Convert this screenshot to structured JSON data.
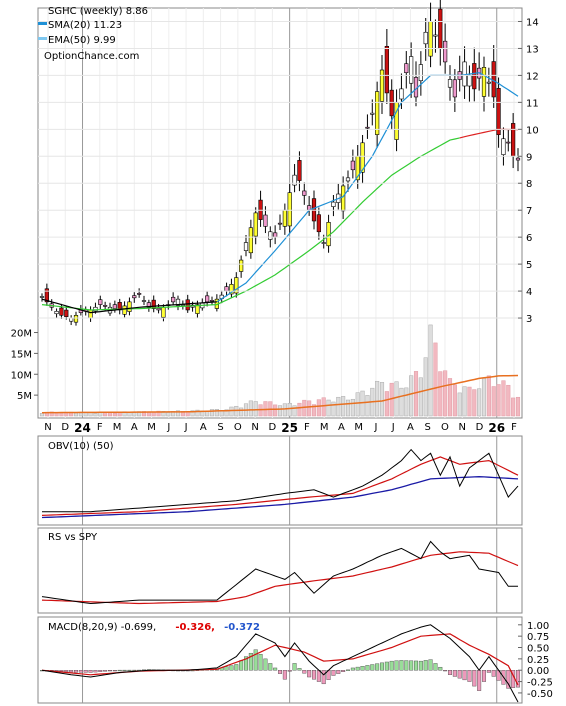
{
  "chart_data": {
    "type": "candlestick",
    "title": "SGHC (weekly) 8.86",
    "legend": [
      {
        "label": "SMA(20) 11.23",
        "color": "#1e90d6"
      },
      {
        "label": "EMA(50) 9.99",
        "color": "#7fc8f0"
      }
    ],
    "watermark": "OptionChance.com",
    "price_axis": {
      "ticks": [
        "14",
        "13",
        "12",
        "11",
        "10",
        "9",
        "8",
        "7",
        "6",
        "5",
        "4",
        "3"
      ],
      "range": [
        2.0,
        14.5
      ]
    },
    "volume_axis": {
      "ticks": [
        "20M",
        "15M",
        "10M",
        "5M"
      ],
      "range": [
        0,
        23
      ]
    },
    "x_labels": [
      "N",
      "D",
      "24",
      "F",
      "M",
      "A",
      "M",
      "J",
      "J",
      "A",
      "S",
      "O",
      "N",
      "D",
      "25",
      "F",
      "M",
      "A",
      "M",
      "J",
      "J",
      "A",
      "S",
      "O",
      "N",
      "D",
      "26",
      "F"
    ],
    "price_waypoints": [
      [
        0,
        3.8
      ],
      [
        2,
        3.4
      ],
      [
        4,
        3.1
      ],
      [
        6,
        3.0
      ],
      [
        8,
        3.2
      ],
      [
        10,
        3.3
      ],
      [
        12,
        3.5
      ],
      [
        14,
        3.4
      ],
      [
        16,
        3.3
      ],
      [
        18,
        3.6
      ],
      [
        20,
        3.9
      ],
      [
        22,
        3.4
      ],
      [
        24,
        3.3
      ],
      [
        26,
        3.5
      ],
      [
        28,
        3.7
      ],
      [
        30,
        3.3
      ],
      [
        32,
        3.5
      ],
      [
        34,
        3.6
      ],
      [
        36,
        3.7
      ],
      [
        38,
        4.0
      ],
      [
        40,
        4.5
      ],
      [
        42,
        5.8
      ],
      [
        44,
        6.9
      ],
      [
        46,
        6.4
      ],
      [
        48,
        6.0
      ],
      [
        50,
        7.0
      ],
      [
        52,
        8.3
      ],
      [
        53,
        8.1
      ],
      [
        55,
        7.0
      ],
      [
        57,
        6.2
      ],
      [
        58,
        5.8
      ],
      [
        60,
        7.3
      ],
      [
        62,
        7.9
      ],
      [
        64,
        8.5
      ],
      [
        66,
        9.5
      ],
      [
        68,
        10.6
      ],
      [
        70,
        12.2
      ],
      [
        72,
        10.5
      ],
      [
        74,
        11.5
      ],
      [
        76,
        12.7
      ],
      [
        77,
        11.2
      ],
      [
        79,
        13.6
      ],
      [
        80,
        14.0
      ],
      [
        81,
        13.5
      ],
      [
        83,
        12.5
      ],
      [
        85,
        11.2
      ],
      [
        87,
        12.5
      ],
      [
        89,
        11.5
      ],
      [
        91,
        12.3
      ],
      [
        93,
        11.2
      ],
      [
        94,
        9.8
      ],
      [
        96,
        9.5
      ],
      [
        97,
        9.0
      ],
      [
        98,
        8.86
      ]
    ],
    "volume_waypoints": [
      [
        0,
        1.0
      ],
      [
        10,
        0.9
      ],
      [
        20,
        1.1
      ],
      [
        30,
        1.3
      ],
      [
        38,
        1.8
      ],
      [
        44,
        4.0
      ],
      [
        50,
        3.0
      ],
      [
        56,
        4.2
      ],
      [
        64,
        5.0
      ],
      [
        70,
        9.0
      ],
      [
        74,
        8.0
      ],
      [
        78,
        12.0
      ],
      [
        80,
        22.0
      ],
      [
        84,
        9.0
      ],
      [
        88,
        7.0
      ],
      [
        92,
        10.0
      ],
      [
        96,
        8.0
      ],
      [
        98,
        5.0
      ]
    ],
    "sma20": [
      [
        0,
        3.7
      ],
      [
        10,
        3.2
      ],
      [
        20,
        3.4
      ],
      [
        36,
        3.6
      ],
      [
        42,
        4.3
      ],
      [
        48,
        5.5
      ],
      [
        55,
        7.0
      ],
      [
        62,
        7.5
      ],
      [
        68,
        9.0
      ],
      [
        74,
        11.0
      ],
      [
        80,
        12.0
      ],
      [
        86,
        12.0
      ],
      [
        90,
        12.1
      ],
      [
        94,
        11.7
      ],
      [
        98,
        11.23
      ]
    ],
    "ema50": [
      [
        0,
        3.5
      ],
      [
        10,
        3.3
      ],
      [
        20,
        3.35
      ],
      [
        36,
        3.5
      ],
      [
        42,
        4.0
      ],
      [
        48,
        4.6
      ],
      [
        55,
        5.5
      ],
      [
        60,
        6.2
      ],
      [
        66,
        7.3
      ],
      [
        72,
        8.3
      ],
      [
        78,
        9.0
      ],
      [
        84,
        9.6
      ],
      [
        90,
        9.85
      ],
      [
        94,
        10.0
      ],
      [
        98,
        9.99
      ]
    ],
    "volume_avg": [
      [
        0,
        0.8
      ],
      [
        30,
        1.0
      ],
      [
        50,
        1.7
      ],
      [
        70,
        3.6
      ],
      [
        82,
        7.0
      ],
      [
        90,
        9.0
      ],
      [
        94,
        9.6
      ],
      [
        98,
        9.7
      ]
    ],
    "obv_panel": {
      "label": "OBV(10) (50)",
      "obv": [
        [
          0,
          0.1
        ],
        [
          10,
          0.1
        ],
        [
          20,
          0.15
        ],
        [
          30,
          0.2
        ],
        [
          40,
          0.25
        ],
        [
          50,
          0.35
        ],
        [
          56,
          0.4
        ],
        [
          60,
          0.3
        ],
        [
          66,
          0.45
        ],
        [
          70,
          0.6
        ],
        [
          74,
          0.8
        ],
        [
          76,
          0.95
        ],
        [
          78,
          0.8
        ],
        [
          80,
          0.9
        ],
        [
          82,
          0.6
        ],
        [
          84,
          0.85
        ],
        [
          86,
          0.45
        ],
        [
          88,
          0.7
        ],
        [
          92,
          0.9
        ],
        [
          94,
          0.6
        ],
        [
          96,
          0.3
        ],
        [
          98,
          0.45
        ]
      ],
      "obv_ma": [
        [
          0,
          0.05
        ],
        [
          20,
          0.1
        ],
        [
          40,
          0.2
        ],
        [
          55,
          0.3
        ],
        [
          64,
          0.35
        ],
        [
          72,
          0.55
        ],
        [
          78,
          0.75
        ],
        [
          82,
          0.85
        ],
        [
          86,
          0.75
        ],
        [
          92,
          0.8
        ],
        [
          98,
          0.6
        ]
      ],
      "obv_slow": [
        [
          0,
          0.02
        ],
        [
          30,
          0.1
        ],
        [
          50,
          0.2
        ],
        [
          64,
          0.3
        ],
        [
          72,
          0.4
        ],
        [
          80,
          0.55
        ],
        [
          90,
          0.58
        ],
        [
          98,
          0.55
        ]
      ]
    },
    "rs_panel": {
      "label": "RS vs SPY",
      "rs": [
        [
          0,
          0.15
        ],
        [
          10,
          0.05
        ],
        [
          20,
          0.1
        ],
        [
          36,
          0.1
        ],
        [
          44,
          0.55
        ],
        [
          50,
          0.4
        ],
        [
          52,
          0.5
        ],
        [
          56,
          0.2
        ],
        [
          60,
          0.45
        ],
        [
          64,
          0.55
        ],
        [
          70,
          0.75
        ],
        [
          74,
          0.85
        ],
        [
          78,
          0.7
        ],
        [
          80,
          0.95
        ],
        [
          82,
          0.8
        ],
        [
          84,
          0.7
        ],
        [
          88,
          0.75
        ],
        [
          90,
          0.55
        ],
        [
          94,
          0.5
        ],
        [
          96,
          0.3
        ],
        [
          98,
          0.3
        ]
      ],
      "rs_ma": [
        [
          0,
          0.1
        ],
        [
          20,
          0.05
        ],
        [
          36,
          0.08
        ],
        [
          42,
          0.15
        ],
        [
          48,
          0.3
        ],
        [
          56,
          0.38
        ],
        [
          64,
          0.45
        ],
        [
          72,
          0.58
        ],
        [
          80,
          0.75
        ],
        [
          86,
          0.8
        ],
        [
          92,
          0.78
        ],
        [
          98,
          0.6
        ]
      ]
    },
    "macd_panel": {
      "label": "MACD(8,20,9) -0.699,",
      "signal_label": "-0.326,",
      "hist_label": "-0.372",
      "ticks": [
        "1.00",
        "0.75",
        "0.50",
        "0.25",
        "0.00",
        "-0.25",
        "-0.50"
      ],
      "range": [
        -0.7,
        1.15
      ],
      "macd": [
        [
          0,
          0.0
        ],
        [
          6,
          -0.1
        ],
        [
          10,
          -0.15
        ],
        [
          16,
          -0.05
        ],
        [
          22,
          0.0
        ],
        [
          30,
          0.0
        ],
        [
          36,
          0.05
        ],
        [
          40,
          0.3
        ],
        [
          44,
          0.8
        ],
        [
          48,
          0.6
        ],
        [
          50,
          0.3
        ],
        [
          52,
          0.6
        ],
        [
          55,
          0.2
        ],
        [
          58,
          -0.1
        ],
        [
          60,
          0.1
        ],
        [
          64,
          0.3
        ],
        [
          70,
          0.6
        ],
        [
          74,
          0.8
        ],
        [
          78,
          0.95
        ],
        [
          80,
          1.0
        ],
        [
          84,
          0.7
        ],
        [
          88,
          0.3
        ],
        [
          90,
          0.0
        ],
        [
          92,
          0.3
        ],
        [
          94,
          0.0
        ],
        [
          96,
          -0.3
        ],
        [
          98,
          -0.699
        ]
      ],
      "signal": [
        [
          0,
          0.0
        ],
        [
          10,
          -0.1
        ],
        [
          20,
          -0.02
        ],
        [
          36,
          0.02
        ],
        [
          42,
          0.25
        ],
        [
          48,
          0.55
        ],
        [
          54,
          0.4
        ],
        [
          58,
          0.2
        ],
        [
          64,
          0.25
        ],
        [
          72,
          0.5
        ],
        [
          78,
          0.75
        ],
        [
          84,
          0.8
        ],
        [
          88,
          0.55
        ],
        [
          92,
          0.35
        ],
        [
          96,
          0.1
        ],
        [
          98,
          -0.326
        ]
      ]
    }
  }
}
